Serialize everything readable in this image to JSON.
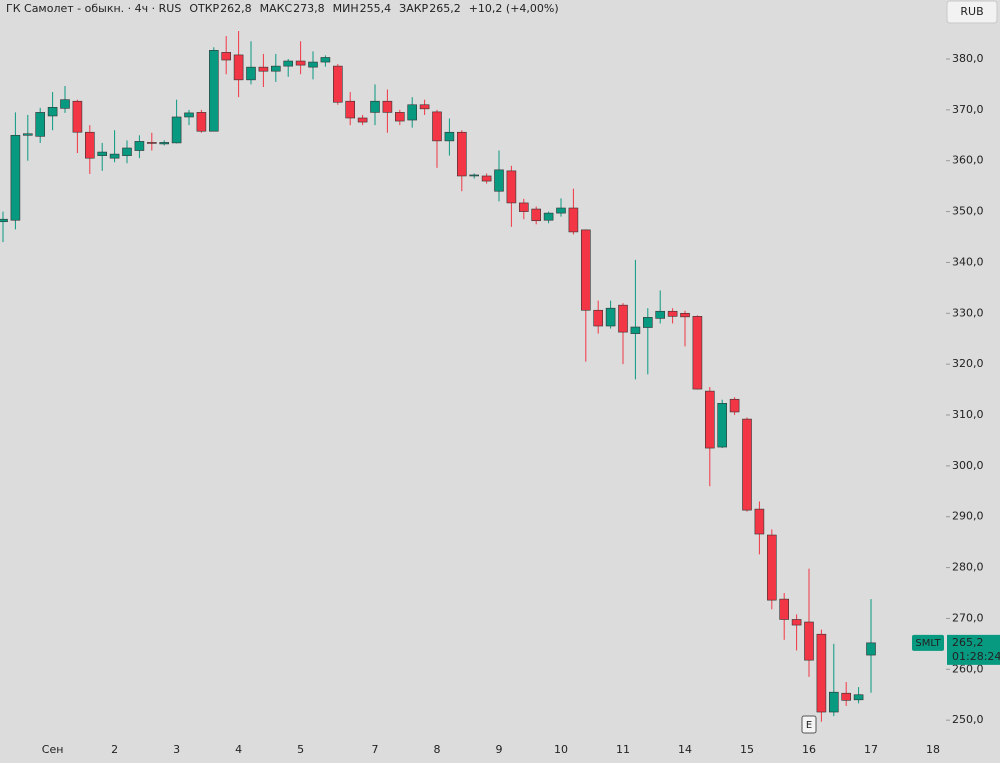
{
  "chart_data": {
    "type": "candlestick",
    "title": "ГК Самолет - обыкн. · 4ч · RUS",
    "header_values": [
      {
        "label": "ОТКР",
        "value": "262,8"
      },
      {
        "label": "МАКС",
        "value": "273,8"
      },
      {
        "label": "МИН",
        "value": "255,4"
      },
      {
        "label": "ЗАКР",
        "value": "265,2"
      }
    ],
    "change": "+10,2 (+4,00%)",
    "currency": "RUB",
    "symbol": "SMLT",
    "last_price": {
      "value": 265.2,
      "label": "265,2"
    },
    "countdown": "01:28:24",
    "event_marker": "E",
    "up_color": "#089981",
    "down_color": "#f23645",
    "categories": [
      null,
      null,
      null,
      null,
      "Сен",
      null,
      null,
      null,
      null,
      "2",
      null,
      null,
      null,
      null,
      "3",
      null,
      null,
      null,
      null,
      "4",
      null,
      null,
      null,
      null,
      "5",
      null,
      null,
      null,
      null,
      null,
      "7",
      null,
      null,
      null,
      null,
      "8",
      null,
      null,
      null,
      null,
      "9",
      null,
      null,
      null,
      null,
      "10",
      null,
      null,
      null,
      null,
      "11",
      null,
      null,
      null,
      null,
      "14",
      null,
      null,
      null,
      null,
      "15",
      null,
      null,
      null,
      null,
      "16",
      null,
      null,
      null,
      null,
      "17",
      null,
      null,
      null,
      null,
      "18"
    ],
    "open": [
      348,
      348.3,
      365,
      364.8,
      368.8,
      370.3,
      371.7,
      365.6,
      361,
      360.5,
      361,
      362,
      363.6,
      363.3,
      363.5,
      368.6,
      369.5,
      365.8,
      381.3,
      380.8,
      375.9,
      378.4,
      377.6,
      378.6,
      379.6,
      378.4,
      379.4,
      378.6,
      371.7,
      368.4,
      369.5,
      371.7,
      369.5,
      368,
      371,
      369.6,
      363.9,
      365.6,
      357,
      357,
      354,
      358,
      351.7,
      350.5,
      348.3,
      349.7,
      350.7,
      346.4,
      330.6,
      327.5,
      331.6,
      326,
      327.2,
      329,
      330.4,
      330,
      329.4,
      314.7,
      303.7,
      313.1,
      309.2,
      291.5,
      286.4,
      273.8,
      269.8,
      269.3,
      266.9,
      251.6,
      255.3,
      254,
      262.8,
      null,
      null,
      null,
      null,
      null
    ],
    "high": [
      350,
      369.5,
      369,
      370.4,
      373.5,
      374.7,
      372,
      367,
      363.5,
      366,
      364,
      365,
      365.5,
      364,
      372,
      370,
      370,
      382.3,
      384.5,
      385.5,
      383.5,
      381,
      381,
      380,
      383.5,
      381.5,
      380.7,
      379,
      373.5,
      369,
      375,
      374,
      370,
      372.5,
      372,
      370,
      368.3,
      366,
      357.5,
      357.5,
      362,
      359,
      352.5,
      351,
      350,
      352.6,
      354.5,
      346.5,
      332.5,
      332.5,
      332,
      340.5,
      331,
      334.5,
      331,
      330.5,
      329.6,
      315.5,
      313,
      313.5,
      309.5,
      293,
      287.5,
      275,
      270.8,
      279.8,
      267.8,
      265,
      257.5,
      256.5,
      273.8,
      null,
      null,
      null,
      null,
      null
    ],
    "low": [
      344,
      346.5,
      360,
      363.5,
      366,
      369.4,
      361.5,
      357.4,
      358,
      359.7,
      359.5,
      360.5,
      362,
      363,
      363.4,
      367,
      365.5,
      365.8,
      377,
      372.5,
      375,
      374.5,
      375.5,
      376.5,
      377,
      376,
      378.5,
      371,
      367,
      367,
      367,
      365.5,
      367,
      366.5,
      369,
      358.6,
      361,
      354,
      356.5,
      355.5,
      352,
      347,
      348.5,
      347.5,
      347.7,
      349,
      345.5,
      320.5,
      326,
      327,
      320,
      317,
      318,
      328,
      328,
      323.5,
      315,
      296,
      303.5,
      310,
      291,
      282.6,
      271.8,
      265.8,
      263.7,
      258.5,
      249.7,
      250.8,
      252.8,
      253.3,
      255.4,
      null,
      null,
      null,
      null,
      null
    ],
    "close": [
      348.5,
      365,
      365.3,
      369.5,
      370.5,
      372,
      365.6,
      360.5,
      361.7,
      361.3,
      362.5,
      363.8,
      363.4,
      363.6,
      368.6,
      369.4,
      365.8,
      381.7,
      379.8,
      375.9,
      378.4,
      377.6,
      378.6,
      379.6,
      378.8,
      379.4,
      380.3,
      371.5,
      368.4,
      367.6,
      371.7,
      369.5,
      367.8,
      371,
      370.2,
      363.9,
      365.6,
      357,
      357.2,
      356,
      358.2,
      351.7,
      350,
      348.2,
      349.7,
      350.7,
      346,
      330.6,
      327.5,
      331,
      326.3,
      327.3,
      329.2,
      330.4,
      329.4,
      329.3,
      315.1,
      303.5,
      312.3,
      310.6,
      291.3,
      286.6,
      273.6,
      269.8,
      268.7,
      261.8,
      251.6,
      255.5,
      253.9,
      255,
      265.2,
      null,
      null,
      null,
      null,
      null
    ],
    "ylim": [
      246.1,
      391.6
    ],
    "yticks": [
      {
        "value": 250,
        "label": "250,0"
      },
      {
        "value": 260,
        "label": "260,0"
      },
      {
        "value": 270,
        "label": "270,0"
      },
      {
        "value": 280,
        "label": "280,0"
      },
      {
        "value": 290,
        "label": "290,0"
      },
      {
        "value": 300,
        "label": "300,0"
      },
      {
        "value": 310,
        "label": "310,0"
      },
      {
        "value": 320,
        "label": "320,0"
      },
      {
        "value": 330,
        "label": "330,0"
      },
      {
        "value": 340,
        "label": "340,0"
      },
      {
        "value": 350,
        "label": "350,0"
      },
      {
        "value": 360,
        "label": "360,0"
      },
      {
        "value": 370,
        "label": "370,0"
      },
      {
        "value": 380,
        "label": "380,0"
      }
    ]
  }
}
